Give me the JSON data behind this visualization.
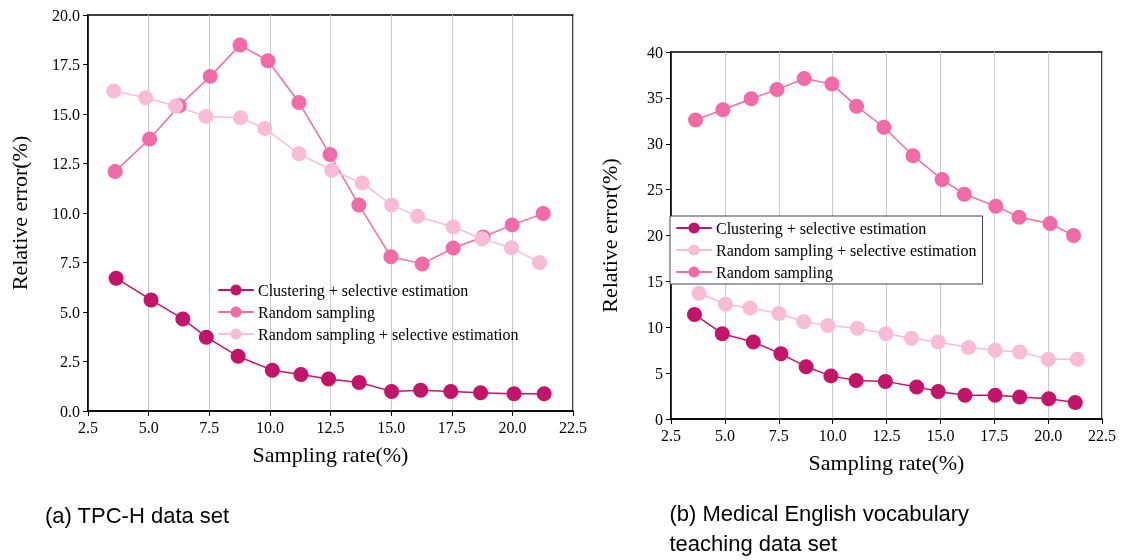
{
  "chart_data": [
    {
      "type": "line",
      "xlabel": "Sampling rate(%)",
      "ylabel": "Relative error(%)",
      "annotations": [
        "(a) TPC-H data set"
      ],
      "xlim": [
        2.5,
        22.5
      ],
      "xticks": [
        2.5,
        {
          "value": 5,
          "label": "5.0"
        },
        7.5,
        {
          "value": 10,
          "label": "10.0"
        },
        12.5,
        {
          "value": 15,
          "label": "15.0"
        },
        17.5,
        {
          "value": 20,
          "label": "20.0"
        },
        22.5
      ],
      "ylim": [
        0,
        20
      ],
      "yticks": [
        {
          "value": 0,
          "label": "0.0"
        },
        2.5,
        {
          "value": 5,
          "label": "5.0"
        },
        7.5,
        {
          "value": 10,
          "label": "10.0"
        },
        12.5,
        {
          "value": 15,
          "label": "15.0"
        },
        17.5,
        {
          "value": 20,
          "label": "20.0"
        }
      ],
      "grid": "x",
      "legend": "bottom right",
      "marker": "circle",
      "line_style": "solid",
      "series": [
        {
          "name": "Clustering + selective estimation",
          "color": "#c2156a",
          "x": [
            3.66,
            5.1,
            6.41,
            7.38,
            8.69,
            10.1,
            11.28,
            12.42,
            13.68,
            15.02,
            16.22,
            17.46,
            18.69,
            20.07,
            21.31
          ],
          "values": [
            6.71,
            5.61,
            4.65,
            3.73,
            2.76,
            2.06,
            1.84,
            1.62,
            1.44,
            0.99,
            1.05,
            0.99,
            0.92,
            0.87,
            0.87
          ]
        },
        {
          "name": "Random sampling",
          "color": "#f06ba8",
          "x": [
            3.62,
            5.04,
            6.26,
            7.54,
            8.77,
            9.92,
            11.2,
            12.48,
            13.67,
            14.99,
            16.28,
            17.56,
            18.79,
            19.99,
            21.27
          ],
          "values": [
            12.1,
            13.74,
            15.42,
            16.9,
            18.48,
            17.69,
            15.58,
            12.95,
            10.41,
            7.79,
            7.43,
            8.23,
            8.79,
            9.4,
            9.97
          ]
        },
        {
          "name": "Random sampling + selective estimation",
          "color": "#f9bcd8",
          "x": [
            3.56,
            4.88,
            6.11,
            7.36,
            8.79,
            9.79,
            11.2,
            12.55,
            13.81,
            15.02,
            16.09,
            17.56,
            18.75,
            19.96,
            21.12
          ],
          "values": [
            16.16,
            15.82,
            15.4,
            14.88,
            14.81,
            14.27,
            12.99,
            12.16,
            11.51,
            10.41,
            9.83,
            9.29,
            8.7,
            8.24,
            7.5
          ]
        }
      ]
    },
    {
      "type": "line",
      "xlabel": "Sampling rate(%)",
      "ylabel": "Relative error(%)",
      "annotations": [
        "(b) Medical English vocabulary teaching data set"
      ],
      "xlim": [
        2.5,
        22.5
      ],
      "xticks": [
        2.5,
        {
          "value": 5,
          "label": "5.0"
        },
        7.5,
        {
          "value": 10,
          "label": "10.0"
        },
        12.5,
        {
          "value": 15,
          "label": "15.0"
        },
        17.5,
        {
          "value": 20,
          "label": "20.0"
        },
        22.5
      ],
      "ylim": [
        0,
        40
      ],
      "yticks": [
        0,
        5,
        10,
        15,
        20,
        25,
        30,
        35,
        40
      ],
      "grid": "x",
      "legend": "left",
      "marker": "circle",
      "line_style": "solid",
      "series": [
        {
          "name": "Clustering + selective estimation",
          "color": "#c2156a",
          "x": [
            3.59,
            4.88,
            6.32,
            7.6,
            8.77,
            9.92,
            11.09,
            12.45,
            13.9,
            14.9,
            16.14,
            17.54,
            18.68,
            20.03,
            21.26
          ],
          "values": [
            11.4,
            9.3,
            8.4,
            7.1,
            5.7,
            4.7,
            4.2,
            4.1,
            3.5,
            3.0,
            2.6,
            2.6,
            2.4,
            2.2,
            1.8
          ]
        },
        {
          "name": "Random sampling + selective estimation",
          "color": "#f9bcd8",
          "x": [
            3.8,
            5.03,
            6.17,
            7.51,
            8.66,
            9.78,
            11.15,
            12.48,
            13.66,
            14.9,
            16.31,
            17.54,
            18.68,
            20.01,
            21.35
          ],
          "values": [
            13.7,
            12.5,
            12.1,
            11.5,
            10.6,
            10.2,
            9.9,
            9.3,
            8.8,
            8.4,
            7.8,
            7.5,
            7.3,
            6.5,
            6.5
          ]
        },
        {
          "name": "Random sampling",
          "color": "#f06ba8",
          "x": [
            3.64,
            4.91,
            6.22,
            7.42,
            8.68,
            9.97,
            11.11,
            12.38,
            13.73,
            15.08,
            16.11,
            17.57,
            18.65,
            20.09,
            21.18
          ],
          "values": [
            32.6,
            33.7,
            34.9,
            35.9,
            37.1,
            36.5,
            34.1,
            31.8,
            28.7,
            26.1,
            24.5,
            23.2,
            22.0,
            21.3,
            20.0
          ]
        }
      ]
    }
  ]
}
